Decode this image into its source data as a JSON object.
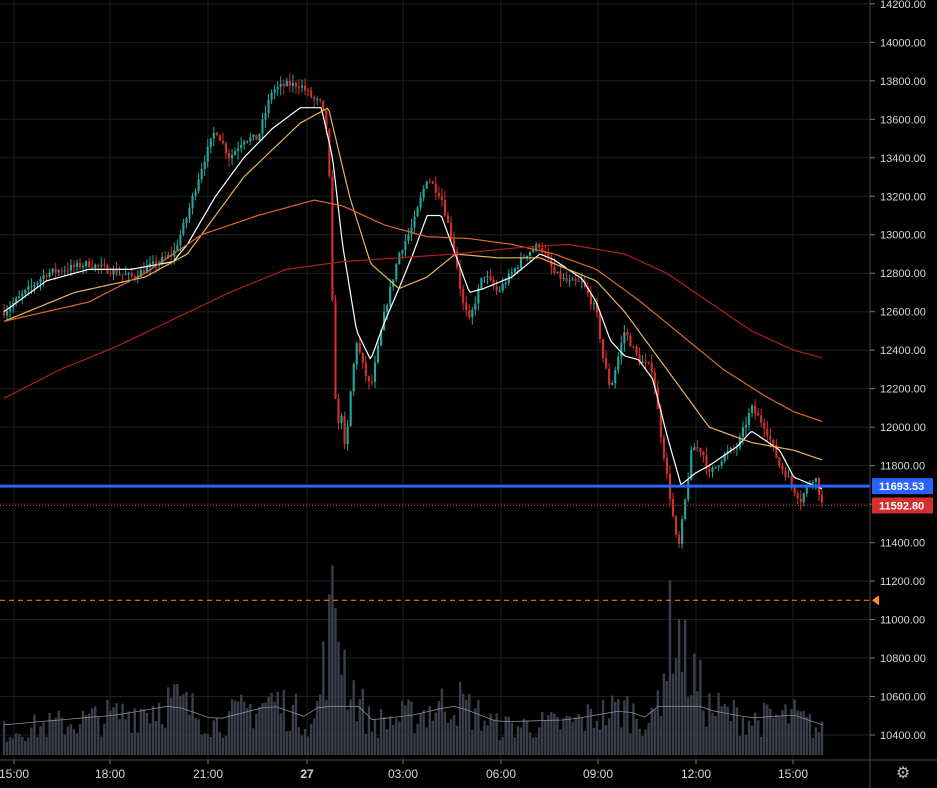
{
  "chart_data": {
    "type": "candlestick",
    "symbol_hint": "",
    "y_axis": {
      "ticks": [
        "14200.00",
        "14000.00",
        "13800.00",
        "13600.00",
        "13400.00",
        "13200.00",
        "13000.00",
        "12800.00",
        "12600.00",
        "12400.00",
        "12200.00",
        "12000.00",
        "11800.00",
        "11600.00",
        "11400.00",
        "11200.00",
        "11000.00",
        "10800.00",
        "10600.00",
        "10400.00"
      ],
      "range": [
        10270,
        14220
      ]
    },
    "x_axis": {
      "ticks": [
        {
          "label": "15:00",
          "bold": false
        },
        {
          "label": "18:00",
          "bold": false
        },
        {
          "label": "21:00",
          "bold": false
        },
        {
          "label": "27",
          "bold": true
        },
        {
          "label": "03:00",
          "bold": false
        },
        {
          "label": "06:00",
          "bold": false
        },
        {
          "label": "09:00",
          "bold": false
        },
        {
          "label": "12:00",
          "bold": false
        },
        {
          "label": "15:00",
          "bold": false
        }
      ]
    },
    "price_path": [
      [
        0,
        12600
      ],
      [
        3,
        12800
      ],
      [
        6,
        12850
      ],
      [
        9,
        12780
      ],
      [
        12,
        12900
      ],
      [
        13,
        13100
      ],
      [
        14,
        13350
      ],
      [
        15,
        13550
      ],
      [
        16,
        13400
      ],
      [
        17,
        13500
      ],
      [
        18,
        13500
      ],
      [
        19,
        13750
      ],
      [
        20,
        13780
      ],
      [
        21,
        13780
      ],
      [
        22,
        13700
      ],
      [
        22.5,
        13680
      ],
      [
        23,
        13500
      ],
      [
        23.3,
        12600
      ],
      [
        23.6,
        11950
      ],
      [
        23.9,
        12100
      ],
      [
        24.2,
        11850
      ],
      [
        24.6,
        12200
      ],
      [
        25,
        12450
      ],
      [
        25.5,
        12300
      ],
      [
        26,
        12200
      ],
      [
        27,
        12600
      ],
      [
        28,
        12900
      ],
      [
        29,
        13050
      ],
      [
        30,
        13300
      ],
      [
        31,
        13200
      ],
      [
        31.5,
        13050
      ],
      [
        32,
        12900
      ],
      [
        32.5,
        12650
      ],
      [
        33,
        12550
      ],
      [
        34,
        12800
      ],
      [
        35,
        12700
      ],
      [
        36,
        12800
      ],
      [
        37,
        12900
      ],
      [
        38,
        12950
      ],
      [
        39,
        12800
      ],
      [
        40,
        12750
      ],
      [
        41,
        12750
      ],
      [
        42,
        12600
      ],
      [
        42.5,
        12350
      ],
      [
        43,
        12200
      ],
      [
        44,
        12500
      ],
      [
        45,
        12350
      ],
      [
        46,
        12300
      ],
      [
        46.5,
        12000
      ],
      [
        47,
        11750
      ],
      [
        47.4,
        11550
      ],
      [
        47.8,
        11350
      ],
      [
        48.3,
        11620
      ],
      [
        48.8,
        11900
      ],
      [
        49.5,
        11880
      ],
      [
        50,
        11750
      ],
      [
        51,
        11850
      ],
      [
        52,
        11900
      ],
      [
        53,
        12100
      ],
      [
        54,
        12000
      ],
      [
        55,
        11800
      ],
      [
        55.5,
        11750
      ],
      [
        56,
        11680
      ],
      [
        56.5,
        11620
      ],
      [
        57,
        11700
      ],
      [
        57.5,
        11750
      ],
      [
        58,
        11600
      ]
    ],
    "moving_averages": [
      {
        "color": "#ffffff",
        "values": [
          [
            0,
            12600
          ],
          [
            3,
            12760
          ],
          [
            6,
            12820
          ],
          [
            9,
            12820
          ],
          [
            12,
            12860
          ],
          [
            13,
            12950
          ],
          [
            15,
            13200
          ],
          [
            17,
            13400
          ],
          [
            19,
            13550
          ],
          [
            21,
            13660
          ],
          [
            22.5,
            13660
          ],
          [
            23.3,
            13400
          ],
          [
            24,
            12950
          ],
          [
            25,
            12500
          ],
          [
            26,
            12350
          ],
          [
            27,
            12550
          ],
          [
            28,
            12720
          ],
          [
            29,
            12900
          ],
          [
            30,
            13100
          ],
          [
            31,
            13100
          ],
          [
            32,
            12900
          ],
          [
            33,
            12700
          ],
          [
            34,
            12720
          ],
          [
            36,
            12780
          ],
          [
            38,
            12900
          ],
          [
            39,
            12870
          ],
          [
            41,
            12770
          ],
          [
            42,
            12650
          ],
          [
            43,
            12450
          ],
          [
            44,
            12370
          ],
          [
            45,
            12350
          ],
          [
            46,
            12250
          ],
          [
            47,
            11960
          ],
          [
            48,
            11700
          ],
          [
            49,
            11760
          ],
          [
            50,
            11800
          ],
          [
            52,
            11900
          ],
          [
            53,
            11980
          ],
          [
            55,
            11880
          ],
          [
            56,
            11740
          ],
          [
            58,
            11680
          ]
        ]
      },
      {
        "color": "#e8b55a",
        "values": [
          [
            0,
            12550
          ],
          [
            5,
            12700
          ],
          [
            10,
            12780
          ],
          [
            13,
            12900
          ],
          [
            17,
            13300
          ],
          [
            21,
            13580
          ],
          [
            23,
            13660
          ],
          [
            24.5,
            13200
          ],
          [
            26,
            12850
          ],
          [
            28,
            12720
          ],
          [
            30,
            12780
          ],
          [
            32,
            12900
          ],
          [
            35,
            12880
          ],
          [
            38,
            12880
          ],
          [
            40,
            12820
          ],
          [
            42,
            12760
          ],
          [
            44,
            12600
          ],
          [
            46,
            12400
          ],
          [
            48,
            12200
          ],
          [
            50,
            12000
          ],
          [
            53,
            11920
          ],
          [
            56,
            11880
          ],
          [
            58,
            11830
          ]
        ]
      },
      {
        "color": "#d96a2b",
        "values": [
          [
            0,
            12550
          ],
          [
            6,
            12650
          ],
          [
            10,
            12800
          ],
          [
            14,
            13000
          ],
          [
            18,
            13100
          ],
          [
            22,
            13180
          ],
          [
            24,
            13150
          ],
          [
            27,
            13050
          ],
          [
            30,
            12990
          ],
          [
            33,
            12980
          ],
          [
            36,
            12950
          ],
          [
            39,
            12900
          ],
          [
            42,
            12820
          ],
          [
            45,
            12660
          ],
          [
            48,
            12480
          ],
          [
            51,
            12300
          ],
          [
            54,
            12160
          ],
          [
            56,
            12080
          ],
          [
            58,
            12030
          ]
        ]
      },
      {
        "color": "#b01f1f",
        "values": [
          [
            0,
            12150
          ],
          [
            4,
            12300
          ],
          [
            8,
            12420
          ],
          [
            12,
            12560
          ],
          [
            16,
            12700
          ],
          [
            20,
            12820
          ],
          [
            24,
            12860
          ],
          [
            28,
            12880
          ],
          [
            32,
            12900
          ],
          [
            36,
            12930
          ],
          [
            40,
            12950
          ],
          [
            44,
            12900
          ],
          [
            47,
            12800
          ],
          [
            50,
            12650
          ],
          [
            53,
            12500
          ],
          [
            56,
            12400
          ],
          [
            58,
            12360
          ]
        ]
      }
    ],
    "volume_path": [
      [
        0,
        0.15
      ],
      [
        8,
        0.25
      ],
      [
        12,
        0.35
      ],
      [
        15,
        0.2
      ],
      [
        19,
        0.35
      ],
      [
        22,
        0.2
      ],
      [
        23.5,
        1.0
      ],
      [
        24.3,
        0.5
      ],
      [
        26,
        0.2
      ],
      [
        29,
        0.25
      ],
      [
        32,
        0.35
      ],
      [
        35,
        0.18
      ],
      [
        40,
        0.2
      ],
      [
        44,
        0.3
      ],
      [
        46,
        0.2
      ],
      [
        47.5,
        0.9
      ],
      [
        48.3,
        0.6
      ],
      [
        50,
        0.3
      ],
      [
        53,
        0.22
      ],
      [
        56,
        0.25
      ],
      [
        58,
        0.15
      ]
    ],
    "price_levels": [
      {
        "value": "11693.53",
        "color": "#2962ff",
        "style": "solid"
      },
      {
        "value": "11592.80",
        "color": "#d32f2f",
        "style": "dotted"
      }
    ],
    "alert_level": {
      "value": 11100,
      "color": "#ff8c2a",
      "style": "dashed"
    },
    "colors": {
      "up": "#26a69a",
      "down": "#d32f2f",
      "volume": "#3a3d4a",
      "grid": "#1e1e1e"
    },
    "grid": true
  },
  "ui": {
    "settings_icon": "gear-icon"
  }
}
